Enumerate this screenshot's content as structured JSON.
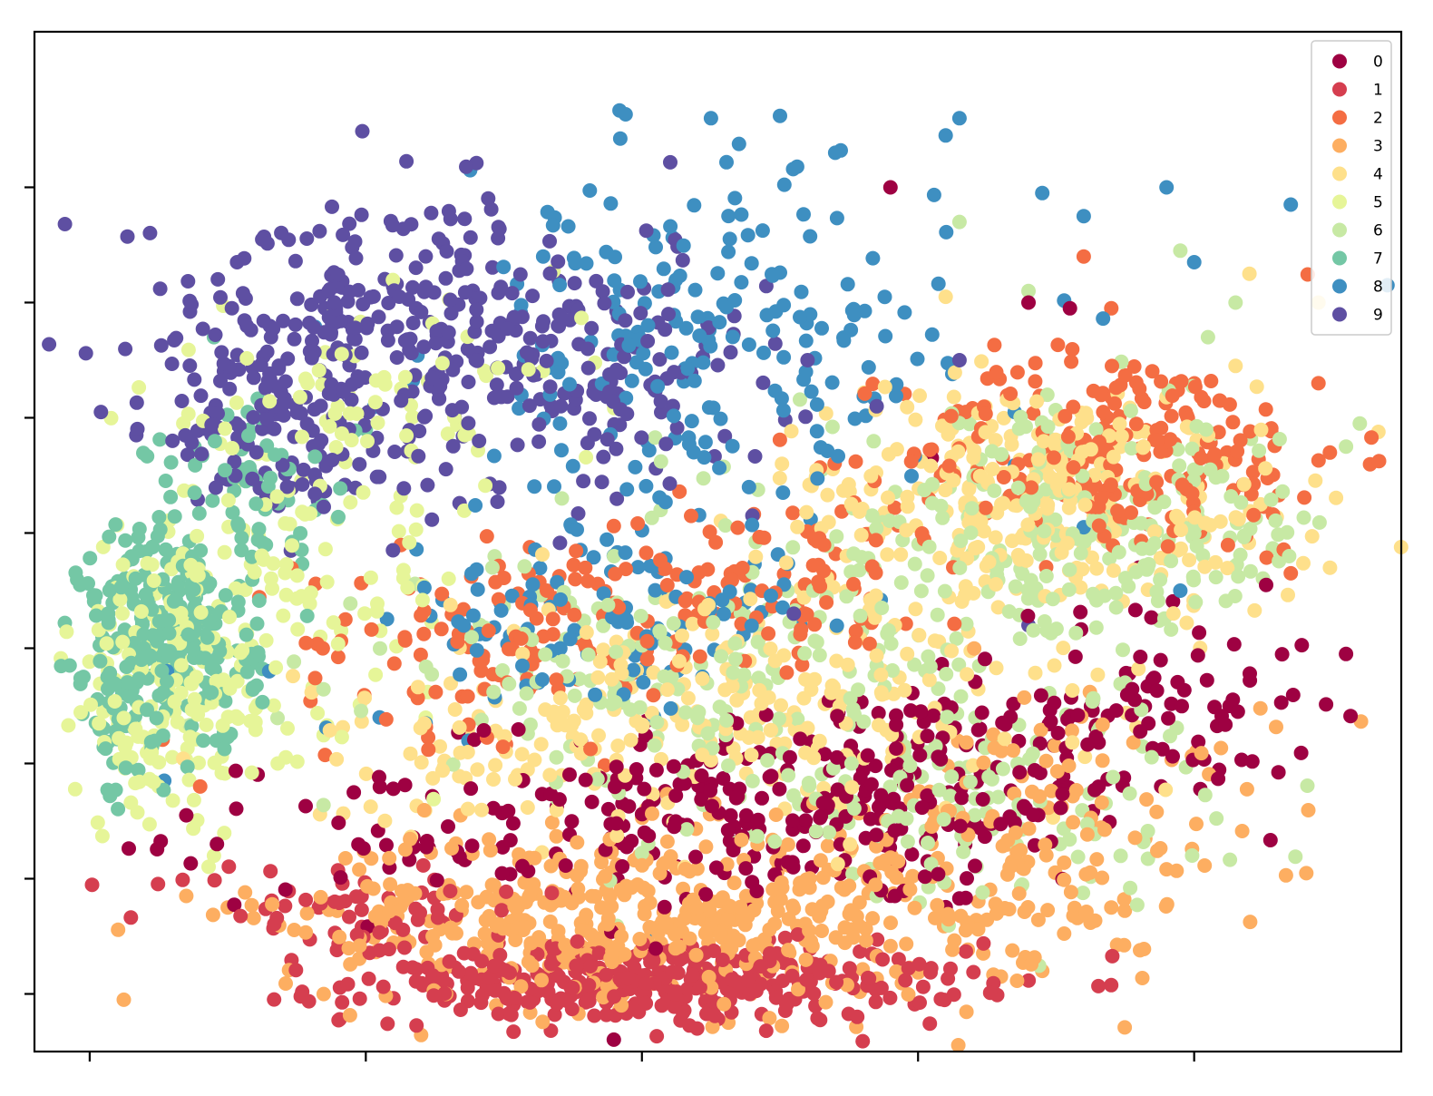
{
  "chart_data": {
    "type": "scatter",
    "title": "",
    "xlabel": "",
    "ylabel": "",
    "xlim": [
      -0.2,
      4.75
    ],
    "ylim": [
      -0.5,
      8.35
    ],
    "x_ticks": [
      0,
      1,
      2,
      3,
      4
    ],
    "y_ticks": [
      0,
      1,
      2,
      3,
      4,
      5,
      6,
      7
    ],
    "tick_labels_visible": false,
    "grid": false,
    "legend": {
      "placement": "top-right",
      "entries": [
        "0",
        "1",
        "2",
        "3",
        "4",
        "5",
        "6",
        "7",
        "8",
        "9"
      ]
    },
    "series": [
      {
        "name": "0",
        "color": "#9e0142",
        "clusters": [
          {
            "cx": 2.75,
            "cy": 1.7,
            "sx": 0.55,
            "sy": 0.5,
            "n": 250
          },
          {
            "cx": 3.85,
            "cy": 2.5,
            "sx": 0.3,
            "sy": 0.45,
            "n": 90
          },
          {
            "cx": 1.5,
            "cy": 1.4,
            "sx": 0.6,
            "sy": 0.35,
            "n": 90
          }
        ],
        "points": [
          [
            0.35,
            1.55
          ],
          [
            3.4,
            6.0
          ],
          [
            3.55,
            5.95
          ],
          [
            3.05,
            4.65
          ],
          [
            2.9,
            7.0
          ],
          [
            3.8,
            3.7
          ],
          [
            4.55,
            2.95
          ]
        ]
      },
      {
        "name": "1",
        "color": "#d53e4f",
        "clusters": [
          {
            "cx": 2.05,
            "cy": 0.1,
            "sx": 0.55,
            "sy": 0.17,
            "n": 380
          },
          {
            "cx": 0.9,
            "cy": 0.75,
            "sx": 0.35,
            "sy": 0.2,
            "n": 60
          }
        ],
        "points": [
          [
            2.2,
            -0.3
          ],
          [
            2.45,
            -0.32
          ]
        ]
      },
      {
        "name": "2",
        "color": "#f46d43",
        "clusters": [
          {
            "cx": 3.75,
            "cy": 4.7,
            "sx": 0.4,
            "sy": 0.45,
            "n": 230
          },
          {
            "cx": 2.4,
            "cy": 3.6,
            "sx": 0.45,
            "sy": 0.35,
            "n": 110
          },
          {
            "cx": 1.55,
            "cy": 3.05,
            "sx": 0.4,
            "sy": 0.4,
            "n": 110
          }
        ],
        "points": [
          [
            4.45,
            5.3
          ],
          [
            4.35,
            3.65
          ],
          [
            3.6,
            6.4
          ],
          [
            3.7,
            5.95
          ],
          [
            0.4,
            1.8
          ]
        ]
      },
      {
        "name": "3",
        "color": "#fdae61",
        "clusters": [
          {
            "cx": 1.9,
            "cy": 0.65,
            "sx": 0.6,
            "sy": 0.38,
            "n": 450
          },
          {
            "cx": 3.1,
            "cy": 0.9,
            "sx": 0.5,
            "sy": 0.45,
            "n": 150
          },
          {
            "cx": 3.6,
            "cy": 1.9,
            "sx": 0.35,
            "sy": 0.4,
            "n": 60
          }
        ],
        "points": [
          [
            0.5,
            0.75
          ],
          [
            0.35,
            0.85
          ],
          [
            3.45,
            0.2
          ],
          [
            3.3,
            0.15
          ],
          [
            3.7,
            0.75
          ]
        ]
      },
      {
        "name": "4",
        "color": "#fee08b",
        "clusters": [
          {
            "cx": 3.45,
            "cy": 4.3,
            "sx": 0.5,
            "sy": 0.5,
            "n": 300
          },
          {
            "cx": 2.5,
            "cy": 2.5,
            "sx": 0.55,
            "sy": 0.55,
            "n": 190
          },
          {
            "cx": 1.6,
            "cy": 2.2,
            "sx": 0.5,
            "sy": 0.4,
            "n": 90
          }
        ],
        "points": [
          [
            4.2,
            6.25
          ],
          [
            4.45,
            6.0
          ],
          [
            4.15,
            5.45
          ],
          [
            3.1,
            6.05
          ]
        ]
      },
      {
        "name": "5",
        "color": "#e6f598",
        "clusters": [
          {
            "cx": 0.3,
            "cy": 2.7,
            "sx": 0.25,
            "sy": 0.65,
            "n": 200
          },
          {
            "cx": 0.95,
            "cy": 5.0,
            "sx": 0.4,
            "sy": 0.45,
            "n": 90
          },
          {
            "cx": 0.75,
            "cy": 3.4,
            "sx": 0.3,
            "sy": 0.5,
            "n": 70
          }
        ],
        "points": [
          [
            0.05,
            2.45
          ],
          [
            0.25,
            1.8
          ],
          [
            0.45,
            1.2
          ]
        ]
      },
      {
        "name": "6",
        "color": "#c7e9a4",
        "clusters": [
          {
            "cx": 3.55,
            "cy": 4.0,
            "sx": 0.5,
            "sy": 0.5,
            "n": 260
          },
          {
            "cx": 2.2,
            "cy": 2.8,
            "sx": 0.55,
            "sy": 0.5,
            "n": 190
          },
          {
            "cx": 3.1,
            "cy": 1.7,
            "sx": 0.5,
            "sy": 0.45,
            "n": 130
          }
        ],
        "points": [
          [
            3.4,
            6.1
          ],
          [
            4.05,
            5.7
          ],
          [
            3.95,
            6.45
          ],
          [
            4.15,
            6.0
          ],
          [
            4.6,
            4.95
          ],
          [
            4.55,
            4.75
          ],
          [
            3.15,
            6.7
          ]
        ]
      },
      {
        "name": "7",
        "color": "#74c7a5",
        "clusters": [
          {
            "cx": 0.3,
            "cy": 3.1,
            "sx": 0.16,
            "sy": 0.5,
            "n": 250
          },
          {
            "cx": 0.6,
            "cy": 4.4,
            "sx": 0.2,
            "sy": 0.35,
            "n": 60
          },
          {
            "cx": 0.1,
            "cy": 2.3,
            "sx": 0.06,
            "sy": 0.3,
            "n": 30
          }
        ],
        "points": [
          [
            0.45,
            5.7
          ],
          [
            1.0,
            4.9
          ]
        ]
      },
      {
        "name": "8",
        "color": "#3e8fc1",
        "clusters": [
          {
            "cx": 2.2,
            "cy": 5.6,
            "sx": 0.45,
            "sy": 0.75,
            "n": 210
          },
          {
            "cx": 1.9,
            "cy": 3.2,
            "sx": 0.4,
            "sy": 0.45,
            "n": 110
          }
        ],
        "points": [
          [
            2.25,
            7.6
          ],
          [
            2.5,
            7.62
          ],
          [
            2.7,
            7.3
          ],
          [
            2.72,
            7.32
          ],
          [
            3.15,
            7.6
          ],
          [
            3.1,
            7.45
          ],
          [
            3.45,
            6.95
          ],
          [
            3.6,
            6.75
          ],
          [
            3.9,
            7.0
          ],
          [
            4.0,
            6.35
          ],
          [
            4.35,
            6.85
          ],
          [
            4.7,
            6.15
          ],
          [
            3.35,
            5.05
          ],
          [
            3.95,
            3.5
          ],
          [
            3.6,
            4.05
          ],
          [
            0.28,
            2.8
          ],
          [
            0.65,
            2.8
          ],
          [
            0.27,
            1.85
          ],
          [
            1.05,
            2.4
          ],
          [
            2.05,
            0.55
          ]
        ]
      },
      {
        "name": "9",
        "color": "#5e4fa2",
        "clusters": [
          {
            "cx": 1.05,
            "cy": 5.8,
            "sx": 0.45,
            "sy": 0.55,
            "n": 300
          },
          {
            "cx": 0.7,
            "cy": 4.8,
            "sx": 0.2,
            "sy": 0.35,
            "n": 90
          },
          {
            "cx": 1.85,
            "cy": 5.4,
            "sx": 0.35,
            "sy": 0.55,
            "n": 120
          }
        ],
        "points": [
          [
            2.6,
            5.5
          ],
          [
            3.15,
            5.5
          ],
          [
            2.85,
            5.1
          ],
          [
            0.3,
            4.8
          ],
          [
            3.4,
            3.2
          ],
          [
            2.55,
            3.3
          ],
          [
            2.4,
            4.15
          ]
        ]
      }
    ]
  }
}
